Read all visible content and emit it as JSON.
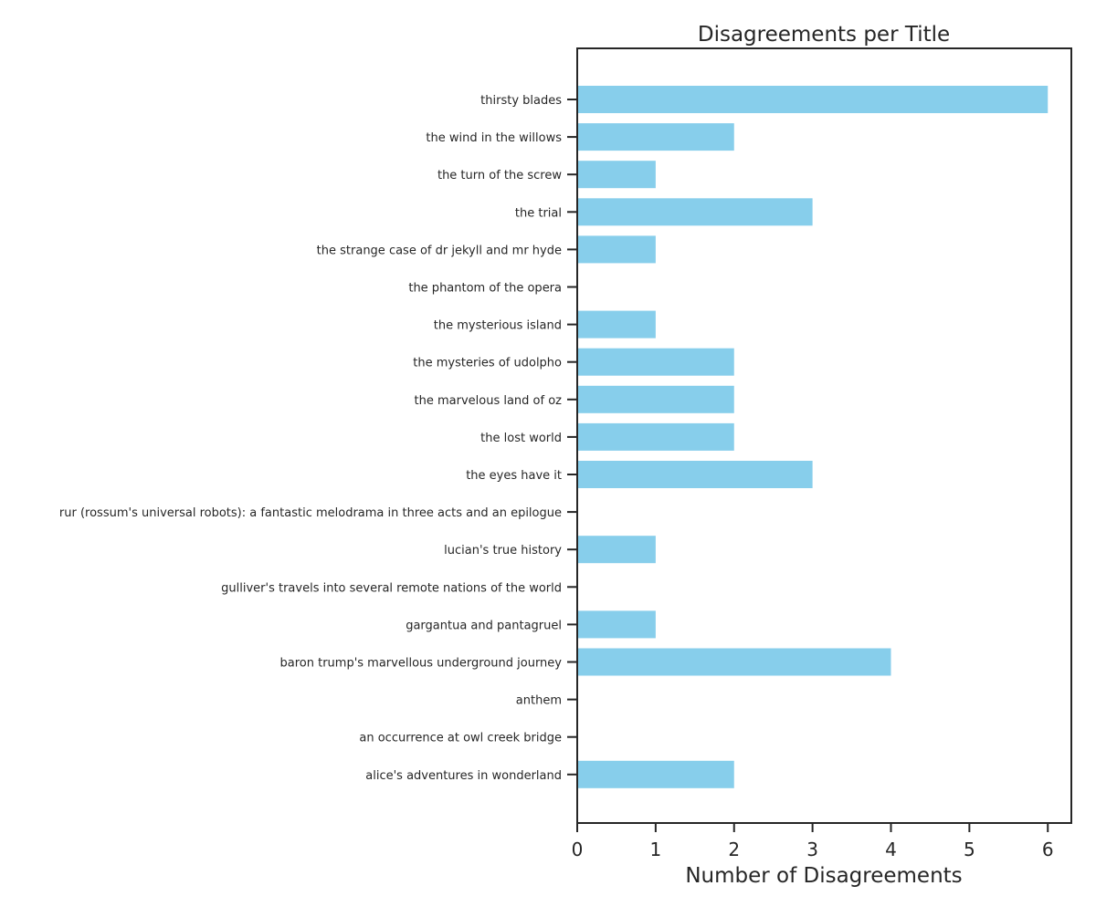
{
  "chart_data": {
    "type": "bar",
    "orientation": "horizontal",
    "title": "Disagreements per Title",
    "xlabel": "Number of Disagreements",
    "ylabel": "",
    "xlim": [
      0,
      6.3
    ],
    "xticks": [
      "0",
      "1",
      "2",
      "3",
      "4",
      "5",
      "6"
    ],
    "grid": false,
    "legend": "none",
    "bar_color": "#87ceeb",
    "categories": [
      "thirsty blades",
      "the wind in the willows",
      "the turn of the screw",
      "the trial",
      "the strange case of dr jekyll and mr hyde",
      "the phantom of the opera",
      "the mysterious island",
      "the mysteries of udolpho",
      "the marvelous land of oz",
      "the lost world",
      "the eyes have it",
      "rur (rossum's universal robots): a fantastic melodrama in three acts and an epilogue",
      "lucian's true history",
      "gulliver's travels into several remote nations of the world",
      "gargantua and pantagruel",
      "baron trump's marvellous underground journey",
      "anthem",
      "an occurrence at owl creek bridge",
      "alice's adventures in wonderland"
    ],
    "values": [
      6,
      2,
      1,
      3,
      1,
      0,
      1,
      2,
      2,
      2,
      3,
      0,
      1,
      0,
      1,
      4,
      0,
      0,
      2
    ]
  }
}
